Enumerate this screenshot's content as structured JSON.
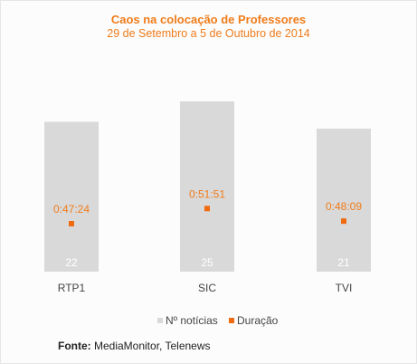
{
  "colors": {
    "bar": "#d9d9d9",
    "marker": "#f06a0f",
    "accent_text": "#f07c1a",
    "bar_label": "#ffffff",
    "axis_text": "#444444"
  },
  "chart_data": {
    "type": "bar",
    "title": "Caos na colocação de Professores",
    "subtitle": "29 de Setembro a 5 de Outubro de 2014",
    "categories": [
      "RTP1",
      "SIC",
      "TVI"
    ],
    "series": [
      {
        "name": "Nº notícias",
        "values": [
          22,
          25,
          21
        ]
      },
      {
        "name": "Duração",
        "values": [
          "0:47:24",
          "0:51:51",
          "0:48:09"
        ],
        "seconds": [
          2844,
          3111,
          2889
        ]
      }
    ],
    "legend_position": "bottom",
    "grid": false
  },
  "source": {
    "label": "Fonte:",
    "text": " MediaMonitor, Telenews"
  }
}
